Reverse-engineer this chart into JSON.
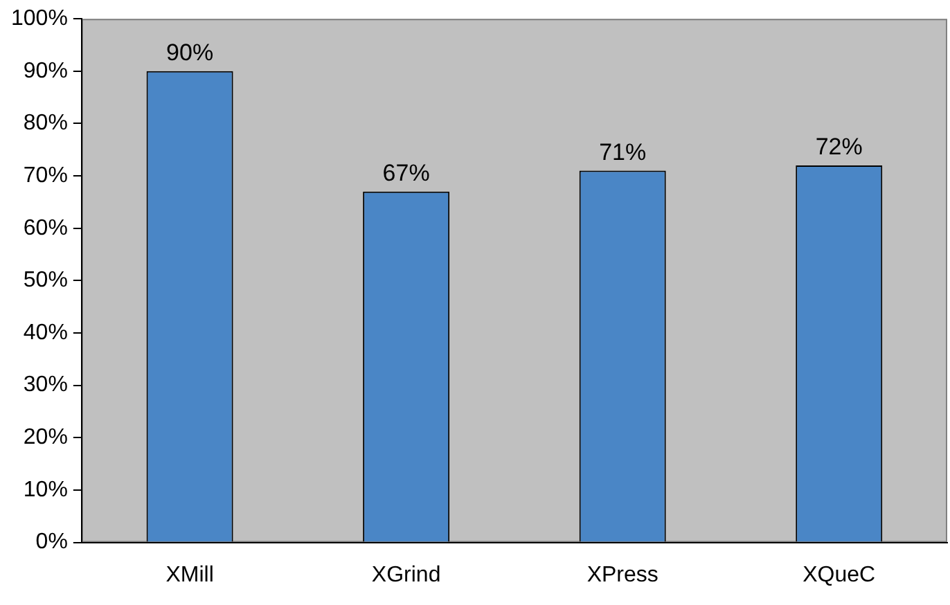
{
  "chart_data": {
    "type": "bar",
    "categories": [
      "XMill",
      "XGrind",
      "XPress",
      "XQueC"
    ],
    "values": [
      90,
      67,
      71,
      72
    ],
    "color": "#4a86c6",
    "ylim": [
      0,
      100
    ],
    "yticks": [
      {
        "value": 0,
        "label": "0%"
      },
      {
        "value": 10,
        "label": "10%"
      },
      {
        "value": 20,
        "label": "20%"
      },
      {
        "value": 30,
        "label": "30%"
      },
      {
        "value": 40,
        "label": "40%"
      },
      {
        "value": 50,
        "label": "50%"
      },
      {
        "value": 60,
        "label": "60%"
      },
      {
        "value": 70,
        "label": "70%"
      },
      {
        "value": 80,
        "label": "80%"
      },
      {
        "value": 90,
        "label": "90%"
      },
      {
        "value": 100,
        "label": "100%"
      }
    ],
    "value_labels": [
      "90%",
      "67%",
      "71%",
      "72%"
    ],
    "grid": false,
    "legend": false
  }
}
